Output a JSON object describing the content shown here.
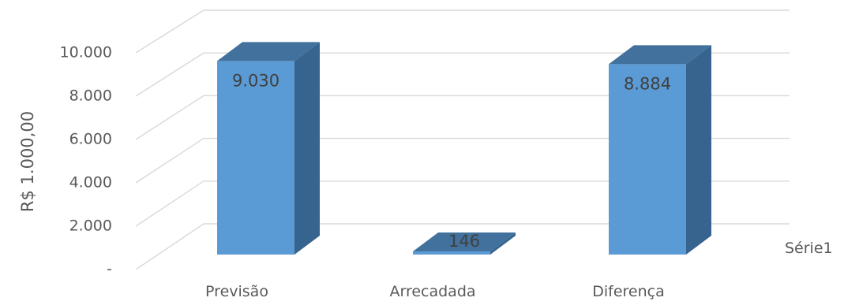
{
  "chart_data": {
    "type": "bar",
    "style": "3d-column",
    "categories": [
      "Previsão",
      "Arrecadada",
      "Diferença"
    ],
    "series": [
      {
        "name": "Série1",
        "values": [
          9030,
          146,
          8884
        ]
      }
    ],
    "data_labels": [
      "9.030",
      "146",
      "8.884"
    ],
    "y_ticks": [
      0,
      2000,
      4000,
      6000,
      8000,
      10000
    ],
    "y_tick_labels": [
      "-",
      "2.000",
      "4.000",
      "6.000",
      "8.000",
      "10.000"
    ],
    "ylabel": "R$ 1.000,00",
    "xlabel": "",
    "ylim": [
      0,
      10000
    ],
    "grid": true,
    "legend": "right",
    "colors": {
      "front": "#5b9bd5",
      "top": "#41719c",
      "side": "#36648f",
      "grid": "#d9d9d9"
    }
  }
}
